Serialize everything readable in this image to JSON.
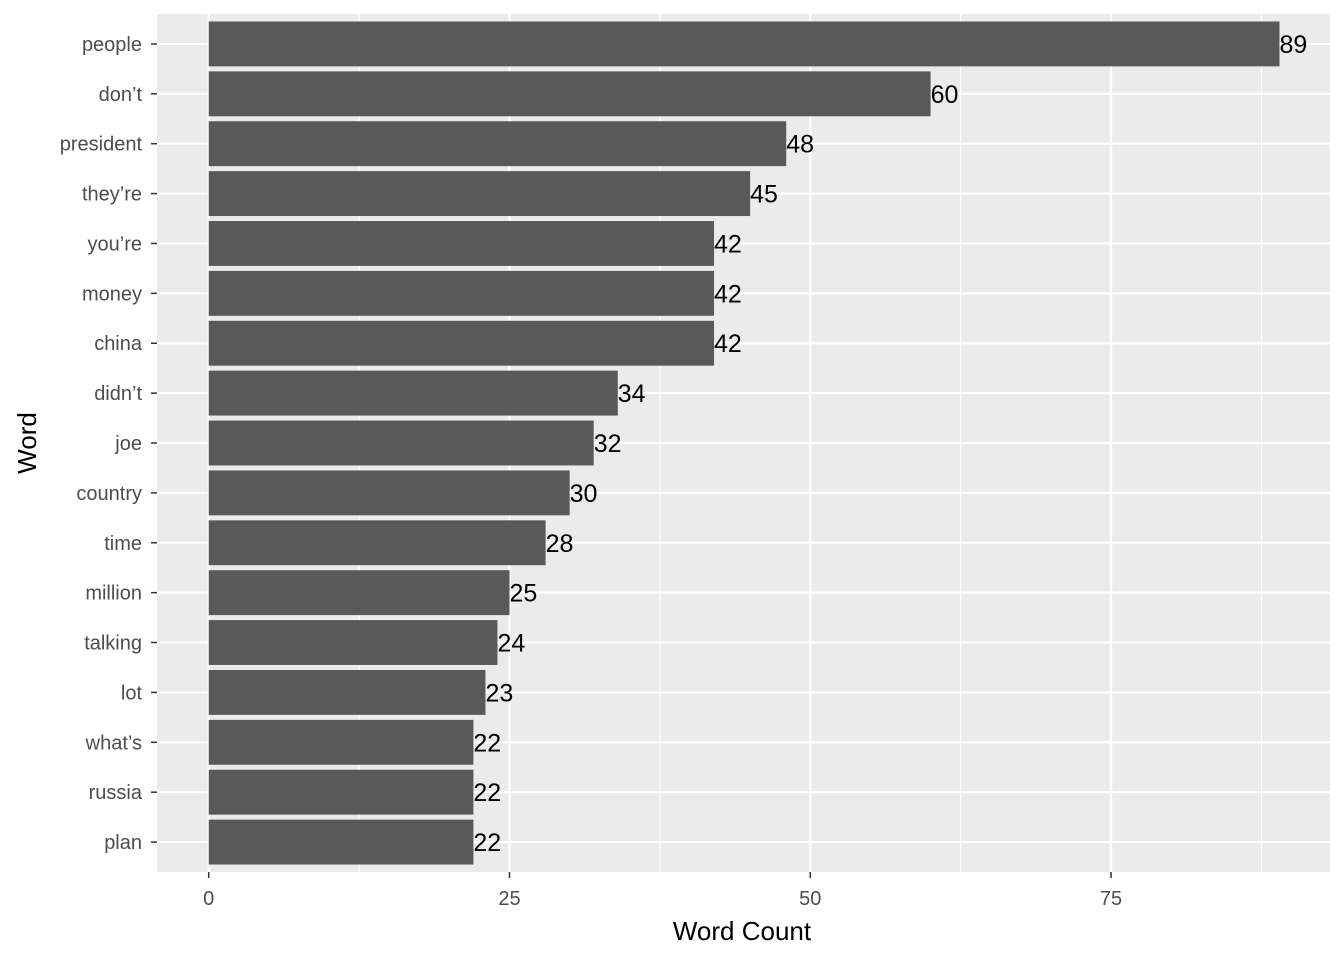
{
  "chart_data": {
    "type": "bar",
    "orientation": "horizontal",
    "xlabel": "Word Count",
    "ylabel": "Word",
    "categories": [
      "people",
      "don’t",
      "president",
      "they’re",
      "you’re",
      "money",
      "china",
      "didn’t",
      "joe",
      "country",
      "time",
      "million",
      "talking",
      "lot",
      "what’s",
      "russia",
      "plan"
    ],
    "values": [
      89,
      60,
      48,
      45,
      42,
      42,
      42,
      34,
      32,
      30,
      28,
      25,
      24,
      23,
      22,
      22,
      22
    ],
    "xlim": [
      -4.3,
      93.2
    ],
    "x_ticks": [
      0,
      25,
      50,
      75
    ],
    "x_tick_labels": [
      "0",
      "25",
      "50",
      "75"
    ],
    "grid": true,
    "colors": {
      "bar": "#595959",
      "panel": "#ebebeb",
      "grid": "#ffffff"
    }
  }
}
